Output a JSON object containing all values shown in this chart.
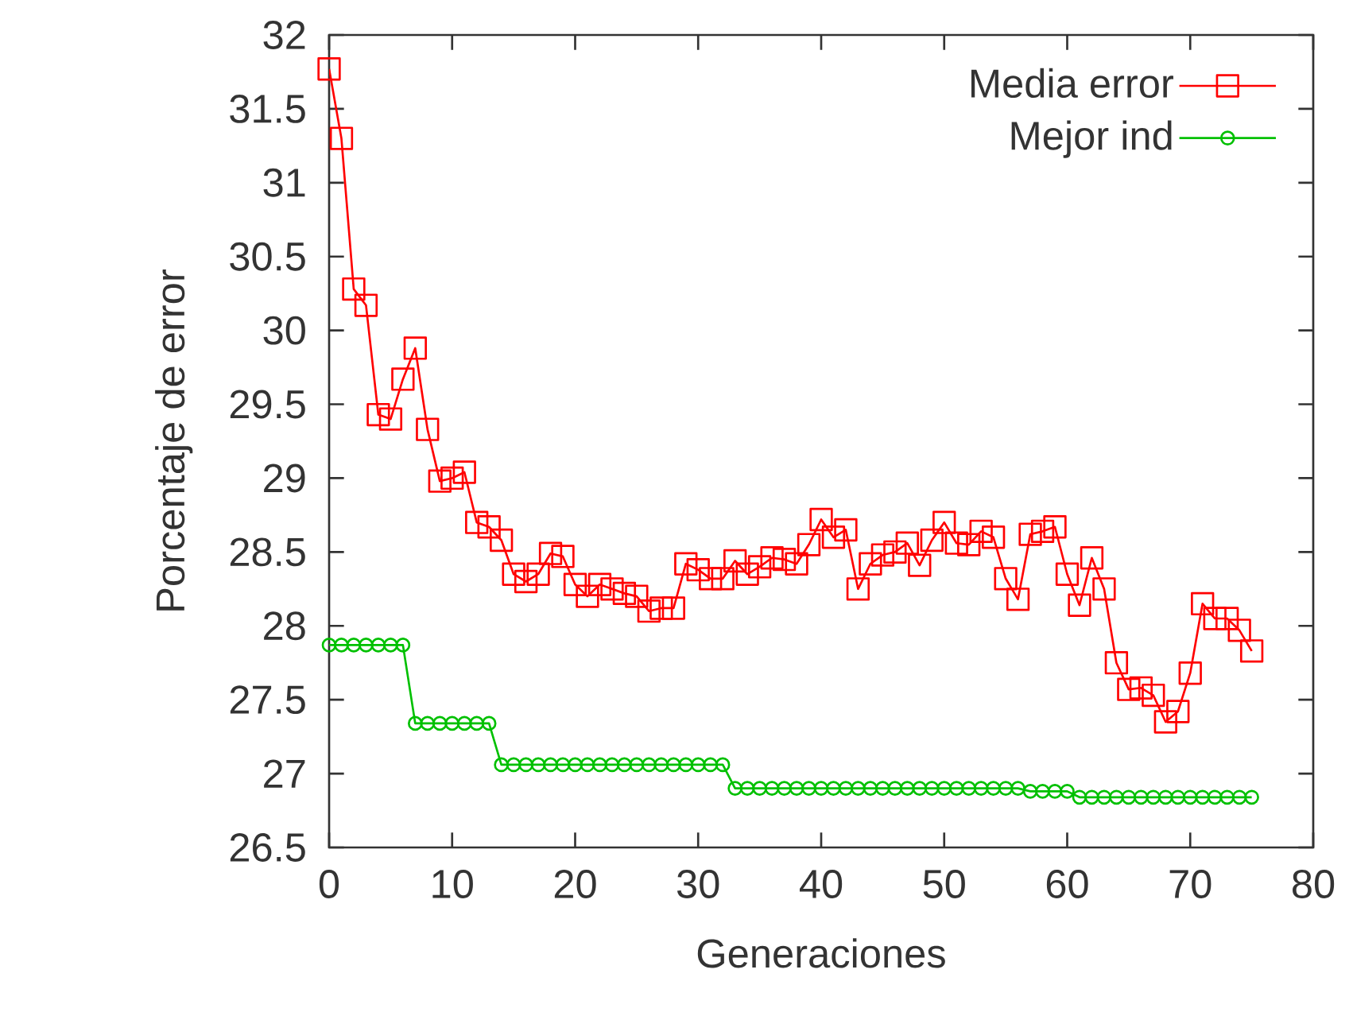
{
  "chart_data": {
    "type": "line",
    "xlabel": "Generaciones",
    "ylabel": "Porcentaje de error",
    "x": [
      0,
      1,
      2,
      3,
      4,
      5,
      6,
      7,
      8,
      9,
      10,
      11,
      12,
      13,
      14,
      15,
      16,
      17,
      18,
      19,
      20,
      21,
      22,
      23,
      24,
      25,
      26,
      27,
      28,
      29,
      30,
      31,
      32,
      33,
      34,
      35,
      36,
      37,
      38,
      39,
      40,
      41,
      42,
      43,
      44,
      45,
      46,
      47,
      48,
      49,
      50,
      51,
      52,
      53,
      54,
      55,
      56,
      57,
      58,
      59,
      60,
      61,
      62,
      63,
      64,
      65,
      66,
      67,
      68,
      69,
      70,
      71,
      72,
      73,
      74,
      75
    ],
    "series": [
      {
        "name": "Media error",
        "color": "#ff0000",
        "marker": "square",
        "values": [
          31.77,
          31.3,
          30.28,
          30.17,
          29.43,
          29.4,
          29.67,
          29.88,
          29.33,
          28.98,
          29.0,
          29.04,
          28.7,
          28.67,
          28.58,
          28.35,
          28.3,
          28.35,
          28.49,
          28.47,
          28.28,
          28.2,
          28.28,
          28.25,
          28.22,
          28.2,
          28.1,
          28.12,
          28.12,
          28.42,
          28.38,
          28.32,
          28.32,
          28.44,
          28.35,
          28.4,
          28.46,
          28.45,
          28.42,
          28.55,
          28.72,
          28.6,
          28.65,
          28.25,
          28.42,
          28.48,
          28.5,
          28.56,
          28.41,
          28.58,
          28.7,
          28.56,
          28.55,
          28.64,
          28.6,
          28.32,
          28.18,
          28.62,
          28.64,
          28.67,
          28.35,
          28.14,
          28.46,
          28.25,
          27.75,
          27.57,
          27.58,
          27.53,
          27.35,
          27.42,
          27.68,
          28.15,
          28.05,
          28.05,
          27.97,
          27.83
        ]
      },
      {
        "name": "Mejor ind",
        "color": "#00c000",
        "marker": "circle",
        "values": [
          27.87,
          27.87,
          27.87,
          27.87,
          27.87,
          27.87,
          27.87,
          27.34,
          27.34,
          27.34,
          27.34,
          27.34,
          27.34,
          27.34,
          27.06,
          27.06,
          27.06,
          27.06,
          27.06,
          27.06,
          27.06,
          27.06,
          27.06,
          27.06,
          27.06,
          27.06,
          27.06,
          27.06,
          27.06,
          27.06,
          27.06,
          27.06,
          27.06,
          26.9,
          26.9,
          26.9,
          26.9,
          26.9,
          26.9,
          26.9,
          26.9,
          26.9,
          26.9,
          26.9,
          26.9,
          26.9,
          26.9,
          26.9,
          26.9,
          26.9,
          26.9,
          26.9,
          26.9,
          26.9,
          26.9,
          26.9,
          26.9,
          26.88,
          26.88,
          26.88,
          26.88,
          26.84,
          26.84,
          26.84,
          26.84,
          26.84,
          26.84,
          26.84,
          26.84,
          26.84,
          26.84,
          26.84,
          26.84,
          26.84,
          26.84,
          26.84
        ]
      }
    ],
    "xlim": [
      0,
      80
    ],
    "xticks": [
      0,
      10,
      20,
      30,
      40,
      50,
      60,
      70,
      80
    ],
    "ylim": [
      26.5,
      32
    ],
    "yticks": [
      26.5,
      27,
      27.5,
      28,
      28.5,
      29,
      29.5,
      30,
      30.5,
      31,
      31.5,
      32
    ],
    "grid": false,
    "legend": "top right"
  }
}
